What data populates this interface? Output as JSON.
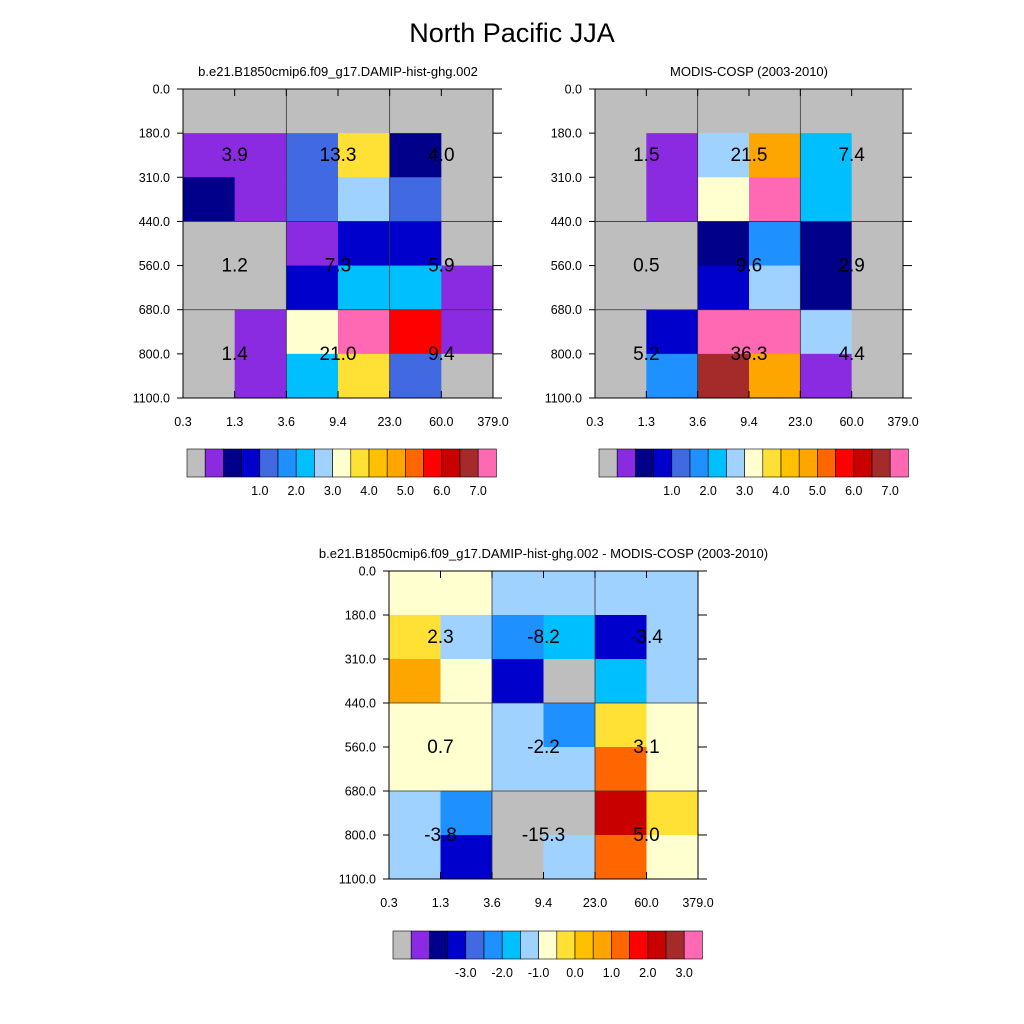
{
  "title": "North Pacific JJA",
  "palette": [
    "#bebebe",
    "#8a2be2",
    "#00008b",
    "#0000cd",
    "#4169e1",
    "#1e90ff",
    "#00bfff",
    "#a0d2ff",
    "#ffffd0",
    "#ffe135",
    "#ffc000",
    "#ffa500",
    "#ff6600",
    "#ff0000",
    "#c80000",
    "#a52a2a",
    "#ff69b4"
  ],
  "x_ticks": [
    "0.3",
    "1.3",
    "3.6",
    "9.4",
    "23.0",
    "60.0",
    "379.0"
  ],
  "y_ticks": [
    "0.0",
    "180.0",
    "310.0",
    "440.0",
    "560.0",
    "680.0",
    "800.0",
    "1100.0"
  ],
  "chart_data": [
    {
      "type": "heatmap",
      "title": "b.e21.B1850cmip6.f09_g17.DAMIP-hist-ghg.002",
      "x_bins": [
        0.3,
        1.3,
        3.6,
        9.4,
        23.0,
        60.0,
        379.0
      ],
      "y_bins": [
        0.0,
        180.0,
        310.0,
        440.0,
        560.0,
        680.0,
        800.0,
        1100.0
      ],
      "cell_color_index": [
        [
          0,
          0,
          0,
          0,
          0,
          0
        ],
        [
          1,
          1,
          4,
          9,
          2,
          0
        ],
        [
          2,
          1,
          4,
          7,
          4,
          0
        ],
        [
          0,
          0,
          1,
          3,
          3,
          0
        ],
        [
          0,
          0,
          3,
          6,
          6,
          1
        ],
        [
          0,
          1,
          8,
          16,
          13,
          1
        ],
        [
          0,
          1,
          6,
          9,
          4,
          0
        ]
      ],
      "box_labels": [
        {
          "text": "3.9",
          "col": 0,
          "row": 0
        },
        {
          "text": "13.3",
          "col": 1,
          "row": 0
        },
        {
          "text": "4.0",
          "col": 2,
          "row": 0
        },
        {
          "text": "1.2",
          "col": 0,
          "row": 1
        },
        {
          "text": "7.3",
          "col": 1,
          "row": 1
        },
        {
          "text": "5.9",
          "col": 2,
          "row": 1
        },
        {
          "text": "1.4",
          "col": 0,
          "row": 2
        },
        {
          "text": "21.0",
          "col": 1,
          "row": 2
        },
        {
          "text": "9.4",
          "col": 2,
          "row": 2
        }
      ],
      "colorbar_labels": [
        "1.0",
        "2.0",
        "3.0",
        "4.0",
        "5.0",
        "6.0",
        "7.0"
      ]
    },
    {
      "type": "heatmap",
      "title": "MODIS-COSP (2003-2010)",
      "x_bins": [
        0.3,
        1.3,
        3.6,
        9.4,
        23.0,
        60.0,
        379.0
      ],
      "y_bins": [
        0.0,
        180.0,
        310.0,
        440.0,
        560.0,
        680.0,
        800.0,
        1100.0
      ],
      "cell_color_index": [
        [
          0,
          0,
          0,
          0,
          0,
          0
        ],
        [
          0,
          1,
          7,
          11,
          6,
          0
        ],
        [
          0,
          1,
          8,
          16,
          6,
          0
        ],
        [
          0,
          0,
          2,
          5,
          2,
          0
        ],
        [
          0,
          0,
          3,
          7,
          2,
          0
        ],
        [
          0,
          3,
          16,
          16,
          7,
          0
        ],
        [
          0,
          5,
          15,
          11,
          1,
          0
        ]
      ],
      "box_labels": [
        {
          "text": "1.5",
          "col": 0,
          "row": 0
        },
        {
          "text": "21.5",
          "col": 1,
          "row": 0
        },
        {
          "text": "7.4",
          "col": 2,
          "row": 0
        },
        {
          "text": "0.5",
          "col": 0,
          "row": 1
        },
        {
          "text": "9.6",
          "col": 1,
          "row": 1
        },
        {
          "text": "2.9",
          "col": 2,
          "row": 1
        },
        {
          "text": "5.2",
          "col": 0,
          "row": 2
        },
        {
          "text": "36.3",
          "col": 1,
          "row": 2
        },
        {
          "text": "4.4",
          "col": 2,
          "row": 2
        }
      ],
      "colorbar_labels": [
        "1.0",
        "2.0",
        "3.0",
        "4.0",
        "5.0",
        "6.0",
        "7.0"
      ]
    },
    {
      "type": "heatmap",
      "title": "b.e21.B1850cmip6.f09_g17.DAMIP-hist-ghg.002 - MODIS-COSP (2003-2010)",
      "x_bins": [
        0.3,
        1.3,
        3.6,
        9.4,
        23.0,
        60.0,
        379.0
      ],
      "y_bins": [
        0.0,
        180.0,
        310.0,
        440.0,
        560.0,
        680.0,
        800.0,
        1100.0
      ],
      "cell_color_index": [
        [
          8,
          8,
          7,
          7,
          7,
          7
        ],
        [
          9,
          7,
          5,
          6,
          3,
          7
        ],
        [
          11,
          8,
          3,
          0,
          6,
          7
        ],
        [
          8,
          8,
          7,
          5,
          9,
          8
        ],
        [
          8,
          8,
          7,
          7,
          12,
          8
        ],
        [
          7,
          5,
          0,
          0,
          14,
          9
        ],
        [
          7,
          3,
          0,
          7,
          12,
          8
        ]
      ],
      "box_labels": [
        {
          "text": "2.3",
          "col": 0,
          "row": 0
        },
        {
          "text": "-8.2",
          "col": 1,
          "row": 0
        },
        {
          "text": "-3.4",
          "col": 2,
          "row": 0
        },
        {
          "text": "0.7",
          "col": 0,
          "row": 1
        },
        {
          "text": "-2.2",
          "col": 1,
          "row": 1
        },
        {
          "text": "3.1",
          "col": 2,
          "row": 1
        },
        {
          "text": "-3.8",
          "col": 0,
          "row": 2
        },
        {
          "text": "-15.3",
          "col": 1,
          "row": 2
        },
        {
          "text": "5.0",
          "col": 2,
          "row": 2
        }
      ],
      "colorbar_labels": [
        "-3.0",
        "-2.0",
        "-1.0",
        "0.0",
        "1.0",
        "2.0",
        "3.0"
      ]
    }
  ]
}
